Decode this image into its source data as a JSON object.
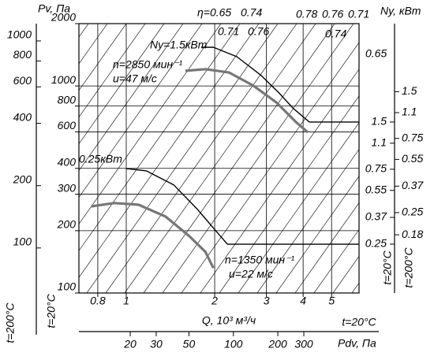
{
  "chart_data": {
    "type": "line",
    "x_label": "Q, 10³ м³/ч",
    "y_label": "Pv, Па",
    "y_temperature_label": "t=20°C",
    "log_x": true,
    "log_y": true,
    "grid": true,
    "xlim": [
      0.69,
      6.2
    ],
    "xticks": [
      0.8,
      1,
      2,
      3,
      4,
      5
    ],
    "ylim": [
      100,
      2000
    ],
    "yticks": [
      100,
      200,
      300,
      400,
      600,
      800,
      1000,
      2000
    ],
    "y2": {
      "label": "t=200°C",
      "lim": [
        60.6,
        1212
      ],
      "ticks": [
        100,
        200,
        400,
        600,
        800,
        1000
      ]
    },
    "x2": {
      "label": "Pdv, Па",
      "temperature_label": "t=20°C",
      "lim": [
        8.98,
        710
      ],
      "ticks": [
        20,
        30,
        50,
        100,
        200,
        300
      ]
    },
    "power_axis_title": "Ny, кВт",
    "power_axes": [
      {
        "label": "t=20°C",
        "lim": [
          0.122,
          6.36
        ],
        "ticks": [
          0.25,
          0.37,
          0.55,
          0.75,
          1.1,
          1.5
        ]
      },
      {
        "label": "t=200°C",
        "lim": [
          0.076,
          4.11
        ],
        "ticks": [
          0.18,
          0.25,
          0.37,
          0.55,
          0.75,
          1.1,
          1.5
        ]
      }
    ],
    "series": [
      {
        "color": "#000000",
        "line_width": 1.4,
        "x": [
          1.8,
          1.98,
          2.38,
          2.86,
          3.3,
          3.7,
          4.2,
          6.2
        ],
        "values": [
          1538,
          1538,
          1384,
          1133,
          930,
          780,
          670,
          670
        ]
      },
      {
        "color": "#777777",
        "line_width": 3.2,
        "x": [
          1.59,
          1.86,
          2.24,
          2.69,
          3.24,
          3.78,
          4.15
        ],
        "values": [
          1183,
          1205,
          1161,
          1009,
          834,
          670,
          597
        ]
      },
      {
        "color": "#000000",
        "line_width": 1.4,
        "x": [
          1.0,
          1.17,
          1.45,
          1.74,
          2.04,
          2.21,
          6.2
        ],
        "values": [
          399,
          389,
          333,
          255,
          196,
          172,
          172
        ]
      },
      {
        "color": "#777777",
        "line_width": 3.2,
        "x": [
          0.76,
          0.91,
          1.1,
          1.36,
          1.64,
          1.86,
          1.98
        ],
        "values": [
          262,
          272,
          267,
          234,
          188,
          158,
          132
        ]
      }
    ],
    "annotations": [
      "η=0.65",
      "0.74",
      "0.78",
      "0.76",
      "0.71",
      "0.71",
      "0.76",
      "0.74",
      "0.65",
      "Ny=1.5кВт",
      "n=2850 мин⁻¹",
      "u=47 м/с",
      "0.25кВт",
      "n=1350 мин⁻¹",
      "u=22 м/с"
    ]
  }
}
